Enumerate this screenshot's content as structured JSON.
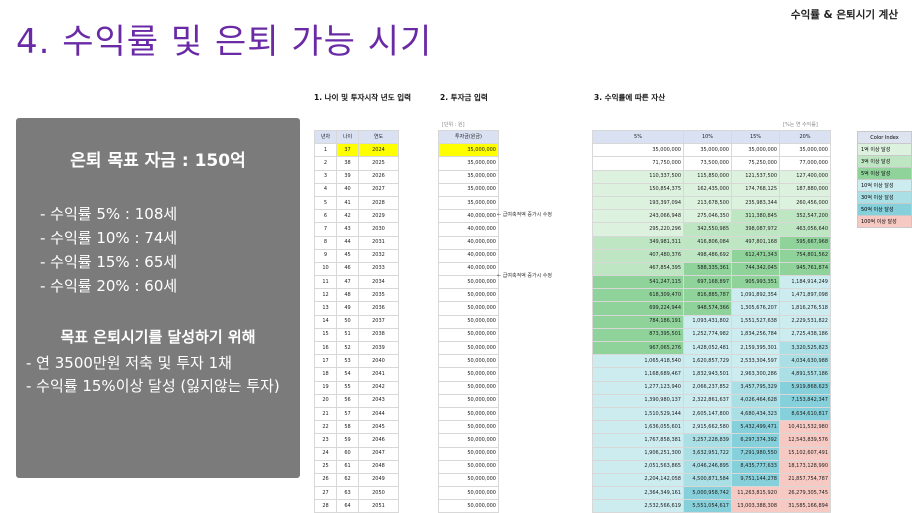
{
  "header": {
    "top_label": "수익률 & 은퇴시기 계산",
    "title": "4. 수익률 및 은퇴 가능 시기"
  },
  "summary": {
    "title": "은퇴 목표 자금 : 150억",
    "rates": [
      "- 수익률  5% : 108세",
      "- 수익률 10% : 74세",
      "- 수익률 15% : 65세",
      "- 수익률 20% : 60세"
    ],
    "subheading": "목표 은퇴시기를 달성하기 위해",
    "bullets": [
      "- 연 3500만원 저축 및 투자 1채",
      "- 수익률 15%이상 달성 (잃지않는 투자)"
    ]
  },
  "section1": {
    "heading": "1. 나이 및 투자시작 년도 입력",
    "columns": [
      "년차",
      "나이",
      "연도"
    ]
  },
  "section2": {
    "heading": "2. 투자금 입력",
    "unit_note": "[단위 : 원]",
    "column": "투자금(원금)"
  },
  "section3": {
    "heading": "3. 수익률에 따른 자산",
    "note": "[%는 연 수익률]",
    "columns": [
      "5%",
      "10%",
      "15%",
      "20%"
    ]
  },
  "annotations": [
    "← 급여축적액 증가시 수정",
    "← 급여축적액 증가시 수정"
  ],
  "legend": {
    "title": "Color Index",
    "items": [
      {
        "label": "1억 이상 달성",
        "color": "#ddf1df"
      },
      {
        "label": "3억 이상 달성",
        "color": "#bfe6c3"
      },
      {
        "label": "5억 이상 달성",
        "color": "#8fd39b"
      },
      {
        "label": "10억 이상 달성",
        "color": "#cdecf0"
      },
      {
        "label": "30억 이상 달성",
        "color": "#aadfe6"
      },
      {
        "label": "50억 이상 달성",
        "color": "#86d0db"
      },
      {
        "label": "100억 이상 달성",
        "color": "#f7c9c3"
      }
    ]
  },
  "rows": [
    {
      "y": "1",
      "age": "37",
      "year": "2024",
      "inv": "35,000,000",
      "v": [
        "35,000,000",
        "35,000,000",
        "35,000,000",
        "35,000,000"
      ]
    },
    {
      "y": "2",
      "age": "38",
      "year": "2025",
      "inv": "35,000,000",
      "v": [
        "71,750,000",
        "73,500,000",
        "75,250,000",
        "77,000,000"
      ]
    },
    {
      "y": "3",
      "age": "39",
      "year": "2026",
      "inv": "35,000,000",
      "v": [
        "110,337,500",
        "115,850,000",
        "121,537,500",
        "127,400,000"
      ]
    },
    {
      "y": "4",
      "age": "40",
      "year": "2027",
      "inv": "35,000,000",
      "v": [
        "150,854,375",
        "162,435,000",
        "174,768,125",
        "187,880,000"
      ]
    },
    {
      "y": "5",
      "age": "41",
      "year": "2028",
      "inv": "35,000,000",
      "v": [
        "193,397,094",
        "213,678,500",
        "235,983,344",
        "260,456,000"
      ]
    },
    {
      "y": "6",
      "age": "42",
      "year": "2029",
      "inv": "40,000,000",
      "v": [
        "243,066,948",
        "275,046,350",
        "311,380,845",
        "352,547,200"
      ]
    },
    {
      "y": "7",
      "age": "43",
      "year": "2030",
      "inv": "40,000,000",
      "v": [
        "295,220,296",
        "342,550,985",
        "398,087,972",
        "463,056,640"
      ]
    },
    {
      "y": "8",
      "age": "44",
      "year": "2031",
      "inv": "40,000,000",
      "v": [
        "349,981,311",
        "416,806,084",
        "497,801,168",
        "595,667,968"
      ]
    },
    {
      "y": "9",
      "age": "45",
      "year": "2032",
      "inv": "40,000,000",
      "v": [
        "407,480,376",
        "498,486,692",
        "612,471,343",
        "754,801,562"
      ]
    },
    {
      "y": "10",
      "age": "46",
      "year": "2033",
      "inv": "40,000,000",
      "v": [
        "467,854,395",
        "588,335,361",
        "744,342,045",
        "945,761,874"
      ]
    },
    {
      "y": "11",
      "age": "47",
      "year": "2034",
      "inv": "50,000,000",
      "v": [
        "541,247,115",
        "697,168,897",
        "905,993,351",
        "1,184,914,249"
      ]
    },
    {
      "y": "12",
      "age": "48",
      "year": "2035",
      "inv": "50,000,000",
      "v": [
        "618,309,470",
        "816,885,787",
        "1,091,892,354",
        "1,471,897,098"
      ]
    },
    {
      "y": "13",
      "age": "49",
      "year": "2036",
      "inv": "50,000,000",
      "v": [
        "699,224,944",
        "948,574,366",
        "1,305,676,207",
        "1,816,276,518"
      ]
    },
    {
      "y": "14",
      "age": "50",
      "year": "2037",
      "inv": "50,000,000",
      "v": [
        "784,186,191",
        "1,093,431,802",
        "1,551,527,638",
        "2,229,531,822"
      ]
    },
    {
      "y": "15",
      "age": "51",
      "year": "2038",
      "inv": "50,000,000",
      "v": [
        "873,395,501",
        "1,252,774,982",
        "1,834,256,784",
        "2,725,438,186"
      ]
    },
    {
      "y": "16",
      "age": "52",
      "year": "2039",
      "inv": "50,000,000",
      "v": [
        "967,065,276",
        "1,428,052,481",
        "2,159,395,301",
        "3,320,525,823"
      ]
    },
    {
      "y": "17",
      "age": "53",
      "year": "2040",
      "inv": "50,000,000",
      "v": [
        "1,065,418,540",
        "1,620,857,729",
        "2,533,304,597",
        "4,034,630,988"
      ]
    },
    {
      "y": "18",
      "age": "54",
      "year": "2041",
      "inv": "50,000,000",
      "v": [
        "1,168,689,467",
        "1,832,943,501",
        "2,963,300,286",
        "4,891,557,186"
      ]
    },
    {
      "y": "19",
      "age": "55",
      "year": "2042",
      "inv": "50,000,000",
      "v": [
        "1,277,123,940",
        "2,066,237,852",
        "3,457,795,329",
        "5,919,868,623"
      ]
    },
    {
      "y": "20",
      "age": "56",
      "year": "2043",
      "inv": "50,000,000",
      "v": [
        "1,390,980,137",
        "2,322,861,637",
        "4,026,464,628",
        "7,153,842,347"
      ]
    },
    {
      "y": "21",
      "age": "57",
      "year": "2044",
      "inv": "50,000,000",
      "v": [
        "1,510,529,144",
        "2,605,147,800",
        "4,680,434,323",
        "8,634,610,817"
      ]
    },
    {
      "y": "22",
      "age": "58",
      "year": "2045",
      "inv": "50,000,000",
      "v": [
        "1,636,055,601",
        "2,915,662,580",
        "5,432,499,471",
        "10,411,532,980"
      ]
    },
    {
      "y": "23",
      "age": "59",
      "year": "2046",
      "inv": "50,000,000",
      "v": [
        "1,767,858,381",
        "3,257,228,839",
        "6,297,374,392",
        "12,543,839,576"
      ]
    },
    {
      "y": "24",
      "age": "60",
      "year": "2047",
      "inv": "50,000,000",
      "v": [
        "1,906,251,300",
        "3,632,951,722",
        "7,291,980,550",
        "15,102,607,491"
      ]
    },
    {
      "y": "25",
      "age": "61",
      "year": "2048",
      "inv": "50,000,000",
      "v": [
        "2,051,563,865",
        "4,046,246,895",
        "8,435,777,633",
        "18,173,128,990"
      ]
    },
    {
      "y": "26",
      "age": "62",
      "year": "2049",
      "inv": "50,000,000",
      "v": [
        "2,204,142,058",
        "4,500,871,584",
        "9,751,144,278",
        "21,857,754,787"
      ]
    },
    {
      "y": "27",
      "age": "63",
      "year": "2050",
      "inv": "50,000,000",
      "v": [
        "2,364,349,161",
        "5,000,958,742",
        "11,263,815,920",
        "26,279,305,745"
      ]
    },
    {
      "y": "28",
      "age": "64",
      "year": "2051",
      "inv": "50,000,000",
      "v": [
        "2,532,566,619",
        "5,551,054,617",
        "13,003,388,308",
        "31,585,166,894"
      ]
    }
  ]
}
